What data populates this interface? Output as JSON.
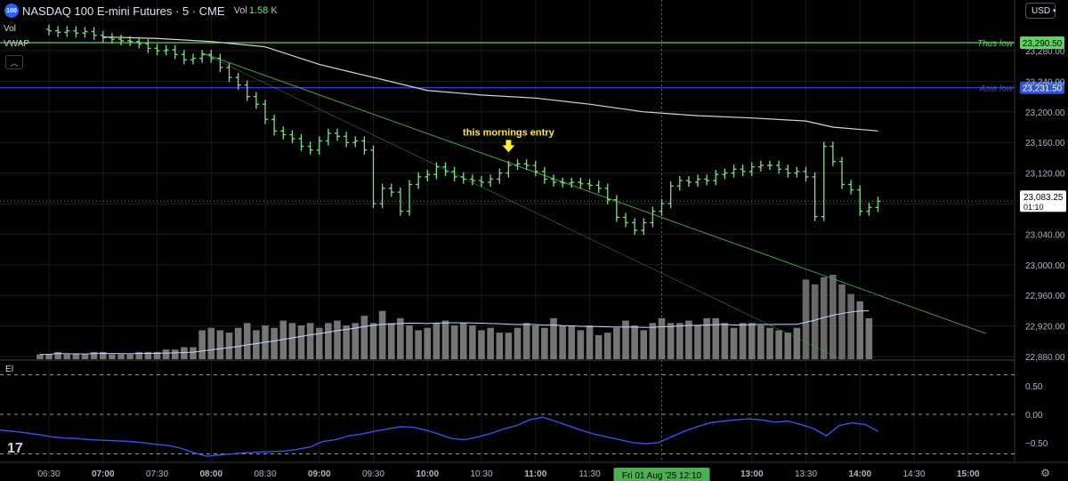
{
  "header": {
    "logo_text": "100",
    "title": "NASDAQ 100 E-mini Futures · 5 · CME",
    "vol_label": "Vol",
    "vol_value": "1.58 K",
    "vol_small": "Vol",
    "vwap_label": "VWAP"
  },
  "currency": "USD",
  "indicator_label": "EI",
  "colors": {
    "background": "#000000",
    "candle": "#7fe07f",
    "vwap": "#d8d8d8",
    "thus_low": "#5fd35f",
    "asia_low": "#2f55d4",
    "trendline": "#4caf50",
    "annotation": "#ffeb3b",
    "volume": "#8a8a8a",
    "volume_ma": "#c8d4ff",
    "oscillator": "#3f51e0",
    "crosshair_label_bg": "#4caf50"
  },
  "chart_data": [
    {
      "type": "candlestick",
      "title": "NASDAQ 100 E-mini Futures · 5 · CME",
      "x_ticks": [
        "06:30",
        "07:00",
        "07:30",
        "08:00",
        "08:30",
        "09:00",
        "09:30",
        "10:00",
        "10:30",
        "11:00",
        "11:30",
        "12:10",
        "13:00",
        "13:30",
        "14:00",
        "14:30",
        "15:00"
      ],
      "crosshair_label": "Fri 01 Aug '25   12:10",
      "y_ticks": [
        22880,
        22920,
        22960,
        23000,
        23040,
        23080,
        23120,
        23160,
        23200,
        23240,
        23280
      ],
      "y_tick_labels": [
        "22,880.00",
        "22,920.00",
        "22,960.00",
        "23,000.00",
        "23,040.00",
        "23,080.00",
        "23,120.00",
        "23,160.00",
        "23,200.00",
        "23,240.00",
        "23,280.00"
      ],
      "ylim": [
        22875,
        23312
      ],
      "grid": true,
      "price_levels": [
        {
          "name": "Thus low",
          "value": 23290.5,
          "label": "23,290.50"
        },
        {
          "name": "Asia low",
          "value": 23231.5,
          "label": "23,231.50"
        }
      ],
      "last_price": {
        "value": 23083.25,
        "label": "23,083.25",
        "countdown": "01:10"
      },
      "annotation": {
        "text": "this mornings entry",
        "time": "10:45",
        "price": 23140
      },
      "trendlines": [
        {
          "from": {
            "time": "07:55",
            "price": 23277
          },
          "to": {
            "time": "15:10",
            "price": 22910
          }
        },
        {
          "from": {
            "time": "07:55",
            "price": 23277
          },
          "to": {
            "time": "13:50",
            "price": 22876
          }
        }
      ],
      "bars": [
        {
          "time": "06:30",
          "close": 23306
        },
        {
          "time": "06:35",
          "close": 23304
        },
        {
          "time": "06:40",
          "close": 23306
        },
        {
          "time": "06:45",
          "close": 23303
        },
        {
          "time": "06:50",
          "close": 23305
        },
        {
          "time": "06:55",
          "close": 23300
        },
        {
          "time": "07:00",
          "close": 23297
        },
        {
          "time": "07:05",
          "close": 23295
        },
        {
          "time": "07:10",
          "close": 23293
        },
        {
          "time": "07:15",
          "close": 23292
        },
        {
          "time": "07:20",
          "close": 23289
        },
        {
          "time": "07:25",
          "close": 23283
        },
        {
          "time": "07:30",
          "close": 23280
        },
        {
          "time": "07:35",
          "close": 23281
        },
        {
          "time": "07:40",
          "close": 23275
        },
        {
          "time": "07:45",
          "close": 23268
        },
        {
          "time": "07:50",
          "close": 23270
        },
        {
          "time": "07:55",
          "close": 23275
        },
        {
          "time": "08:00",
          "close": 23270
        },
        {
          "time": "08:05",
          "close": 23258
        },
        {
          "time": "08:10",
          "close": 23245
        },
        {
          "time": "08:15",
          "close": 23235
        },
        {
          "time": "08:20",
          "close": 23220
        },
        {
          "time": "08:25",
          "close": 23210
        },
        {
          "time": "08:30",
          "close": 23190
        },
        {
          "time": "08:35",
          "close": 23175
        },
        {
          "time": "08:40",
          "close": 23170
        },
        {
          "time": "08:45",
          "close": 23165
        },
        {
          "time": "08:50",
          "close": 23155
        },
        {
          "time": "08:55",
          "close": 23150
        },
        {
          "time": "09:00",
          "close": 23162
        },
        {
          "time": "09:05",
          "close": 23172
        },
        {
          "time": "09:10",
          "close": 23168
        },
        {
          "time": "09:15",
          "close": 23160
        },
        {
          "time": "09:20",
          "close": 23162
        },
        {
          "time": "09:25",
          "close": 23150
        },
        {
          "time": "09:30",
          "close": 23080
        },
        {
          "time": "09:35",
          "close": 23100
        },
        {
          "time": "09:40",
          "close": 23095
        },
        {
          "time": "09:45",
          "close": 23070
        },
        {
          "time": "09:50",
          "close": 23105
        },
        {
          "time": "09:55",
          "close": 23115
        },
        {
          "time": "10:00",
          "close": 23118
        },
        {
          "time": "10:05",
          "close": 23128
        },
        {
          "time": "10:10",
          "close": 23122
        },
        {
          "time": "10:15",
          "close": 23115
        },
        {
          "time": "10:20",
          "close": 23112
        },
        {
          "time": "10:25",
          "close": 23110
        },
        {
          "time": "10:30",
          "close": 23108
        },
        {
          "time": "10:35",
          "close": 23112
        },
        {
          "time": "10:40",
          "close": 23120
        },
        {
          "time": "10:45",
          "close": 23130
        },
        {
          "time": "10:50",
          "close": 23132
        },
        {
          "time": "10:55",
          "close": 23130
        },
        {
          "time": "11:00",
          "close": 23122
        },
        {
          "time": "11:05",
          "close": 23112
        },
        {
          "time": "11:10",
          "close": 23108
        },
        {
          "time": "11:15",
          "close": 23107
        },
        {
          "time": "11:20",
          "close": 23108
        },
        {
          "time": "11:25",
          "close": 23106
        },
        {
          "time": "11:30",
          "close": 23104
        },
        {
          "time": "11:35",
          "close": 23100
        },
        {
          "time": "11:40",
          "close": 23085
        },
        {
          "time": "11:45",
          "close": 23062
        },
        {
          "time": "11:50",
          "close": 23055
        },
        {
          "time": "11:55",
          "close": 23045
        },
        {
          "time": "12:00",
          "close": 23055
        },
        {
          "time": "12:05",
          "close": 23070
        },
        {
          "time": "12:10",
          "close": 23080
        },
        {
          "time": "12:15",
          "close": 23103
        },
        {
          "time": "12:20",
          "close": 23110
        },
        {
          "time": "12:25",
          "close": 23108
        },
        {
          "time": "12:30",
          "close": 23112
        },
        {
          "time": "12:35",
          "close": 23110
        },
        {
          "time": "12:40",
          "close": 23118
        },
        {
          "time": "12:45",
          "close": 23120
        },
        {
          "time": "12:50",
          "close": 23125
        },
        {
          "time": "12:55",
          "close": 23122
        },
        {
          "time": "13:00",
          "close": 23128
        },
        {
          "time": "13:05",
          "close": 23130
        },
        {
          "time": "13:10",
          "close": 23130
        },
        {
          "time": "13:15",
          "close": 23125
        },
        {
          "time": "13:20",
          "close": 23120
        },
        {
          "time": "13:25",
          "close": 23122
        },
        {
          "time": "13:30",
          "close": 23115
        },
        {
          "time": "13:35",
          "close": 23063
        },
        {
          "time": "13:40",
          "close": 23155
        },
        {
          "time": "13:45",
          "close": 23135
        },
        {
          "time": "13:50",
          "close": 23105
        },
        {
          "time": "13:55",
          "close": 23098
        },
        {
          "time": "14:00",
          "close": 23070
        },
        {
          "time": "14:05",
          "close": 23075
        },
        {
          "time": "14:10",
          "close": 23083
        }
      ],
      "vwap": [
        {
          "time": "07:00",
          "value": 23298
        },
        {
          "time": "07:30",
          "value": 23296
        },
        {
          "time": "08:00",
          "value": 23292
        },
        {
          "time": "08:30",
          "value": 23285
        },
        {
          "time": "09:00",
          "value": 23262
        },
        {
          "time": "09:30",
          "value": 23245
        },
        {
          "time": "10:00",
          "value": 23228
        },
        {
          "time": "10:30",
          "value": 23222
        },
        {
          "time": "11:00",
          "value": 23218
        },
        {
          "time": "11:30",
          "value": 23210
        },
        {
          "time": "12:00",
          "value": 23200
        },
        {
          "time": "12:30",
          "value": 23195
        },
        {
          "time": "13:00",
          "value": 23192
        },
        {
          "time": "13:30",
          "value": 23188
        },
        {
          "time": "13:45",
          "value": 23180
        },
        {
          "time": "14:00",
          "value": 23177
        },
        {
          "time": "14:10",
          "value": 23175
        }
      ]
    },
    {
      "type": "bar",
      "title": "Volume",
      "values": [
        2,
        2,
        3,
        2,
        2,
        2,
        3,
        3,
        2,
        2,
        2,
        3,
        3,
        3,
        4,
        4,
        5,
        5,
        12,
        13,
        12,
        11,
        13,
        15,
        12,
        14,
        13,
        16,
        15,
        14,
        15,
        13,
        15,
        16,
        14,
        15,
        18,
        15,
        20,
        15,
        17,
        14,
        12,
        13,
        15,
        16,
        14,
        15,
        14,
        12,
        13,
        11,
        11,
        13,
        15,
        14,
        13,
        17,
        14,
        14,
        12,
        14,
        10,
        11,
        13,
        16,
        14,
        12,
        15,
        17,
        15,
        15,
        16,
        14,
        17,
        17,
        15,
        13,
        15,
        15,
        14,
        13,
        12,
        11,
        13,
        33,
        31,
        34,
        35,
        31,
        27,
        24,
        17
      ],
      "ma_note": "moving average line"
    },
    {
      "type": "line",
      "title": "EI",
      "y_ticks": [
        0.5,
        0.0,
        -0.5
      ],
      "y_tick_labels": [
        "0.50",
        "0.00",
        "−0.50"
      ],
      "ylim": [
        -0.85,
        0.85
      ],
      "dashed_levels": [
        0.7,
        0.0,
        -0.7
      ],
      "series": [
        {
          "values": [
            -0.28,
            -0.3,
            -0.33,
            -0.36,
            -0.4,
            -0.42,
            -0.43,
            -0.45,
            -0.46,
            -0.47,
            -0.48,
            -0.5,
            -0.53,
            -0.55,
            -0.6,
            -0.68,
            -0.74,
            -0.72,
            -0.7,
            -0.68,
            -0.67,
            -0.66,
            -0.65,
            -0.62,
            -0.58,
            -0.48,
            -0.45,
            -0.38,
            -0.35,
            -0.3,
            -0.26,
            -0.22,
            -0.23,
            -0.28,
            -0.35,
            -0.43,
            -0.45,
            -0.4,
            -0.34,
            -0.26,
            -0.2,
            -0.1,
            -0.05,
            -0.12,
            -0.2,
            -0.28,
            -0.35,
            -0.4,
            -0.45,
            -0.5,
            -0.52,
            -0.5,
            -0.4,
            -0.3,
            -0.22,
            -0.15,
            -0.12,
            -0.1,
            -0.08,
            -0.1,
            -0.14,
            -0.12,
            -0.18,
            -0.25,
            -0.38,
            -0.2,
            -0.15,
            -0.18,
            -0.3
          ]
        }
      ]
    }
  ]
}
